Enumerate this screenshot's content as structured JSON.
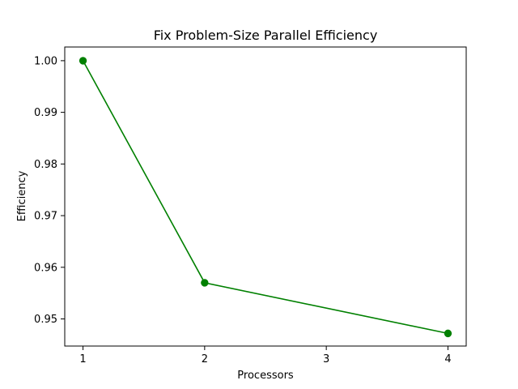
{
  "chart_data": {
    "type": "line",
    "title": "Fix Problem-Size Parallel Efficiency",
    "xlabel": "Processors",
    "ylabel": "Efficiency",
    "xlim": [
      0.85,
      4.15
    ],
    "ylim": [
      0.94475,
      1.00265
    ],
    "xticks": [
      1,
      2,
      3,
      4
    ],
    "yticks": [
      0.95,
      0.96,
      0.97,
      0.98,
      0.99,
      1.0
    ],
    "ytick_labels": [
      "0.95",
      "0.96",
      "0.97",
      "0.98",
      "0.99",
      "1.00"
    ],
    "grid": false,
    "series": [
      {
        "x": [
          1,
          2,
          4
        ],
        "y": [
          1.0,
          0.957,
          0.9472
        ],
        "color": "#008000",
        "marker": "circle"
      }
    ]
  }
}
